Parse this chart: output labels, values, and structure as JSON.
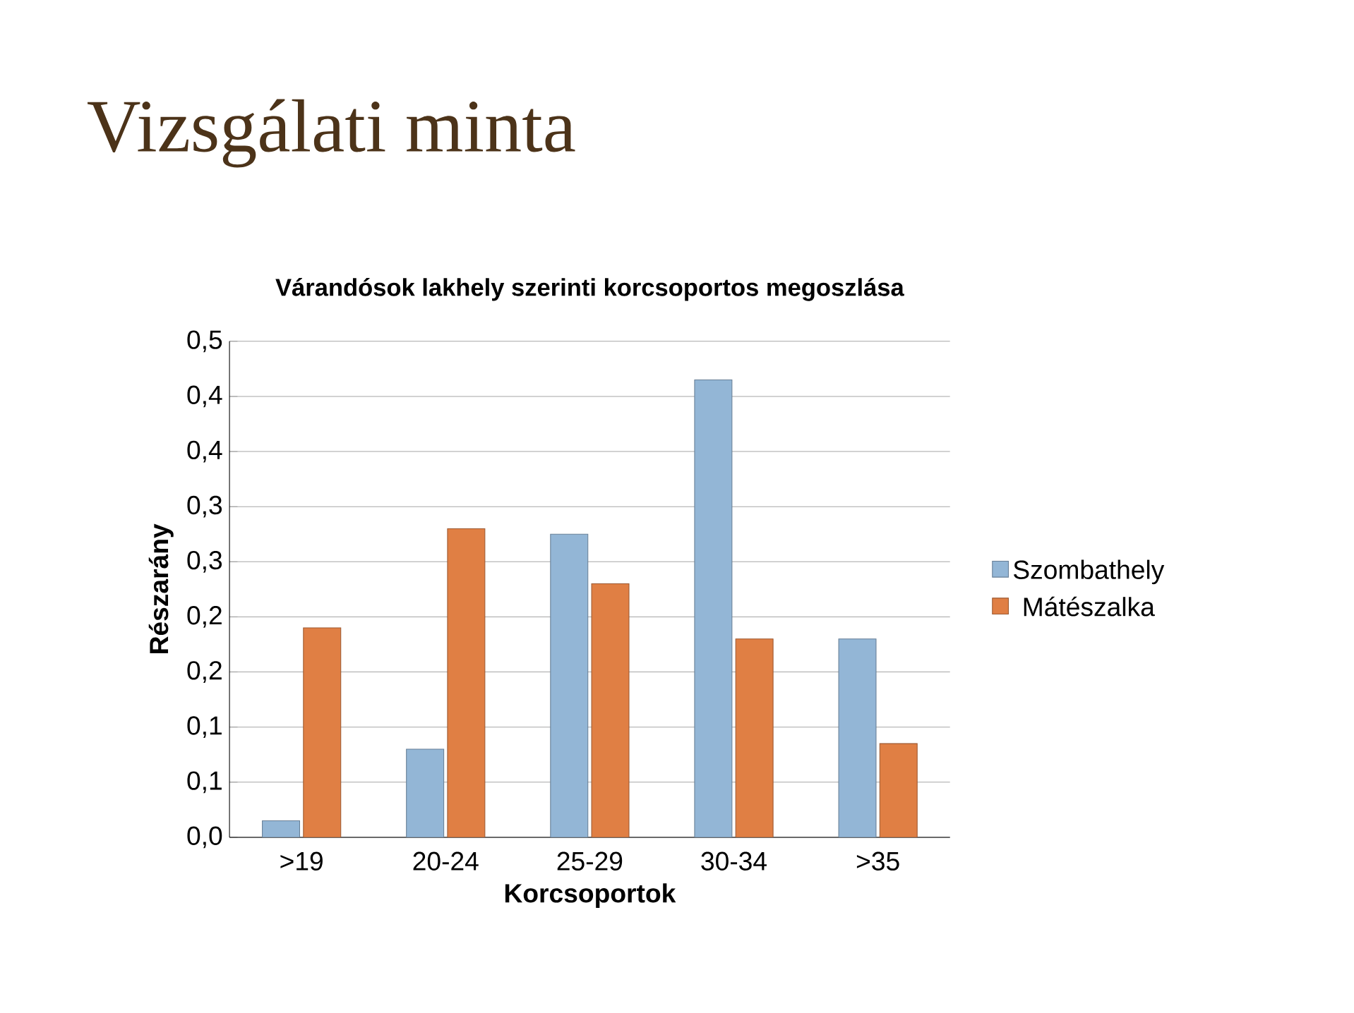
{
  "chart_data": {
    "type": "bar",
    "title": "Várandósok lakhely szerinti korcsoportos megoszlása",
    "subtitle": "Vizsgálati minta",
    "xlabel": "Korcsoportok",
    "ylabel": "Részarány",
    "categories": [
      ">19",
      "20-24",
      "25-29",
      "30-34",
      ">35"
    ],
    "series": [
      {
        "name": "Szombathely",
        "color": "#93b6d6",
        "values": [
          0.015,
          0.08,
          0.275,
          0.415,
          0.18
        ]
      },
      {
        "name": "Mátészalka",
        "color": "#e07f44",
        "values": [
          0.19,
          0.28,
          0.23,
          0.18,
          0.085
        ]
      }
    ],
    "ylim": [
      0,
      0.45
    ],
    "yticks": [
      {
        "value": 0,
        "label": "0,0"
      },
      {
        "value": 0.05,
        "label": "0,1"
      },
      {
        "value": 0.1,
        "label": "0,1"
      },
      {
        "value": 0.15,
        "label": "0,2"
      },
      {
        "value": 0.2,
        "label": "0,2"
      },
      {
        "value": 0.25,
        "label": "0,3"
      },
      {
        "value": 0.3,
        "label": "0,3"
      },
      {
        "value": 0.35,
        "label": "0,4"
      },
      {
        "value": 0.4,
        "label": "0,4"
      },
      {
        "value": 0.45,
        "label": "0,5"
      }
    ],
    "grid": "y",
    "legend": "right"
  }
}
